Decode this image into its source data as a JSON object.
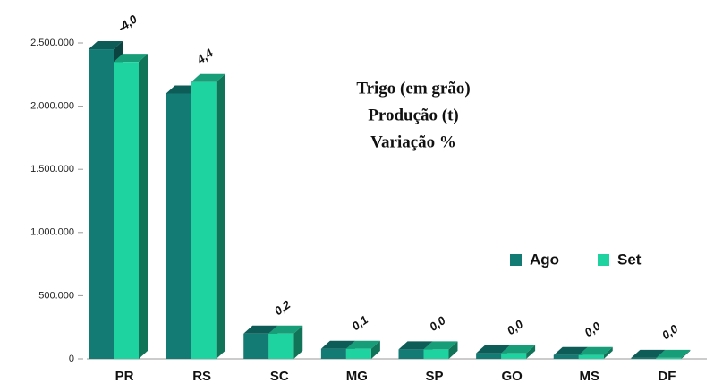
{
  "chart_data": {
    "type": "bar3d",
    "title_lines": [
      "Trigo (em grão)",
      "Produção (t)",
      "Variação %"
    ],
    "categories": [
      "PR",
      "RS",
      "SC",
      "MG",
      "SP",
      "GO",
      "MS",
      "DF"
    ],
    "series": [
      {
        "name": "Ago",
        "color": "#137a74",
        "values": [
          2450000,
          2100000,
          200000,
          80000,
          75000,
          45000,
          30000,
          8000
        ]
      },
      {
        "name": "Set",
        "color": "#1fd3a0",
        "values": [
          2350000,
          2190000,
          200000,
          80000,
          75000,
          45000,
          30000,
          8000
        ]
      }
    ],
    "variation": [
      {
        "value": -4.0,
        "label": "-4,0"
      },
      {
        "value": 4.4,
        "label": "4,4"
      },
      {
        "value": 0.2,
        "label": "0,2"
      },
      {
        "value": 0.1,
        "label": "0,1"
      },
      {
        "value": 0.0,
        "label": "0,0"
      },
      {
        "value": 0.0,
        "label": "0,0"
      },
      {
        "value": 0.0,
        "label": "0,0"
      },
      {
        "value": 0.0,
        "label": "0,0"
      }
    ],
    "ylim": [
      0,
      2500000
    ],
    "yticks": [
      0,
      {
        "value": 500000,
        "label": "500.000"
      },
      {
        "value": 1000000,
        "label": "1.000.000"
      },
      {
        "value": 1500000,
        "label": "1.500.000"
      },
      {
        "value": 2000000,
        "label": "2.000.000"
      },
      {
        "value": 2500000,
        "label": "2.500.000"
      }
    ],
    "legend": "right"
  }
}
